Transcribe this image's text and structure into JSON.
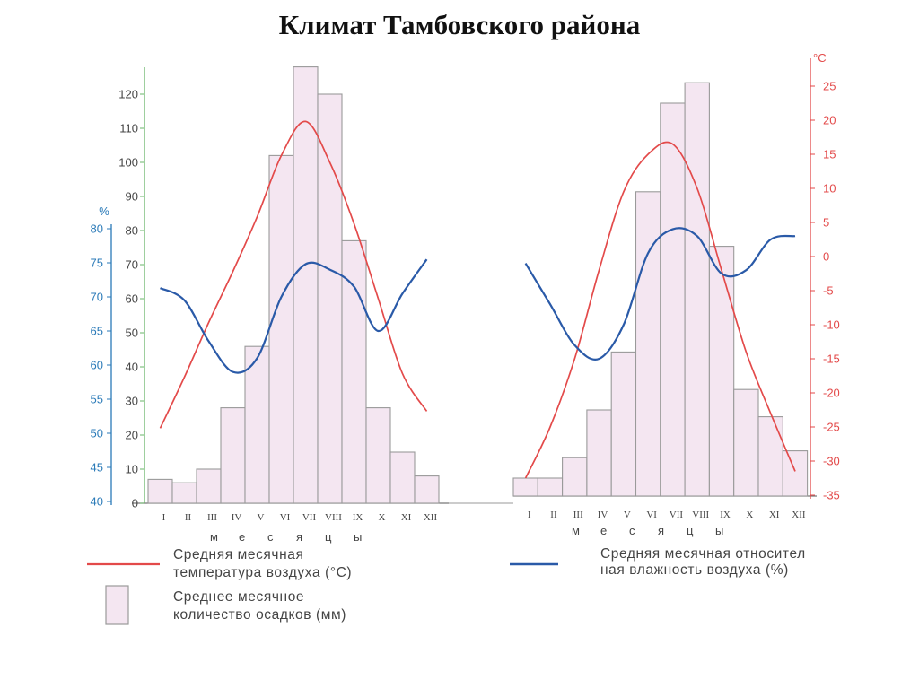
{
  "title": "Климат Тамбовского района",
  "units": {
    "humidity": "%",
    "temperature": "°C"
  },
  "axis_caption": [
    "м",
    "е",
    "с",
    "я",
    "ц",
    "ы"
  ],
  "legend": {
    "temperature": [
      "Средняя месячная",
      "температура воздуха (°С)"
    ],
    "precipitation": [
      "Среднее месячное",
      "количество осадков (мм)"
    ],
    "humidity": [
      "Средняя месячная относител",
      "ная влажность воздуха (%)"
    ]
  },
  "colors": {
    "temperature": "#e34a4a",
    "humidity": "#2a5aa8",
    "bars_fill": "#f4e6f1",
    "bars_stroke": "#9a9a9a",
    "pct_axis": "#2a7ab8",
    "mm_axis": "#6ab56a"
  },
  "chart_data": [
    {
      "type": "bar",
      "name": "left-panel",
      "categories": [
        "I",
        "II",
        "III",
        "IV",
        "V",
        "VI",
        "VII",
        "VIII",
        "IX",
        "X",
        "XI",
        "XII"
      ],
      "axes": {
        "precipitation_mm": {
          "ticks": [
            0,
            10,
            20,
            30,
            40,
            50,
            60,
            70,
            80,
            90,
            100,
            110,
            120
          ],
          "range": [
            0,
            128
          ]
        },
        "humidity_pct": {
          "ticks": [
            40,
            45,
            50,
            55,
            60,
            65,
            70,
            75,
            80
          ],
          "range": [
            40,
            80
          ]
        }
      },
      "series": [
        {
          "name": "Среднее месячное количество осадков (мм)",
          "kind": "bar",
          "values": [
            7,
            6,
            10,
            28,
            46,
            102,
            128,
            120,
            77,
            28,
            15,
            8
          ]
        },
        {
          "name": "Средняя месячная температура воздуха (°С)",
          "kind": "line",
          "y_units": "mm-axis",
          "values": [
            22,
            37,
            53,
            68,
            84,
            102,
            112,
            100,
            82,
            60,
            38,
            27
          ]
        },
        {
          "name": "Средняя месячная относительная влажность воздуха (%)",
          "kind": "line",
          "y_units": "%",
          "values": [
            71.3,
            69.5,
            63.5,
            59.0,
            61.0,
            70.0,
            74.8,
            74.0,
            71.5,
            65.0,
            70.5,
            75.5
          ]
        }
      ]
    },
    {
      "type": "bar",
      "name": "right-panel",
      "categories": [
        "I",
        "II",
        "III",
        "IV",
        "V",
        "VI",
        "VII",
        "VIII",
        "IX",
        "X",
        "XI",
        "XII"
      ],
      "axes": {
        "temperature_c": {
          "ticks": [
            25,
            20,
            15,
            10,
            5,
            0,
            -5,
            -10,
            -15,
            -20,
            -25,
            -30,
            -35
          ],
          "labels": [
            "25",
            "20",
            "15",
            "10",
            "5",
            "0",
            "-5",
            "-10",
            "-15",
            "-20",
            "-25",
            "-30",
            "-35"
          ],
          "range": [
            -35,
            28
          ]
        }
      },
      "series": [
        {
          "name": "Среднее месячное количество осадков (мм)",
          "kind": "bar",
          "y_units": "°C-axis",
          "values": [
            -32.5,
            -32.5,
            -29.5,
            -22.5,
            -14.0,
            9.5,
            22.5,
            25.5,
            1.5,
            -19.5,
            -23.5,
            -28.5
          ]
        },
        {
          "name": "Средняя месячная температура воздуха (°С)",
          "kind": "line",
          "y_units": "°C",
          "values": [
            -32.5,
            -25.0,
            -15.0,
            -2.0,
            9.5,
            15.0,
            16.5,
            10.0,
            -2.0,
            -14.0,
            -23.0,
            -31.5
          ]
        },
        {
          "name": "Средняя месячная относительная влажность воздуха (%)",
          "kind": "line",
          "y_units": "°C-axis",
          "values": [
            -1.0,
            -7.0,
            -13.0,
            -15.0,
            -10.0,
            0.5,
            4.0,
            3.0,
            -2.5,
            -2.0,
            2.5,
            3.0
          ]
        }
      ]
    }
  ]
}
